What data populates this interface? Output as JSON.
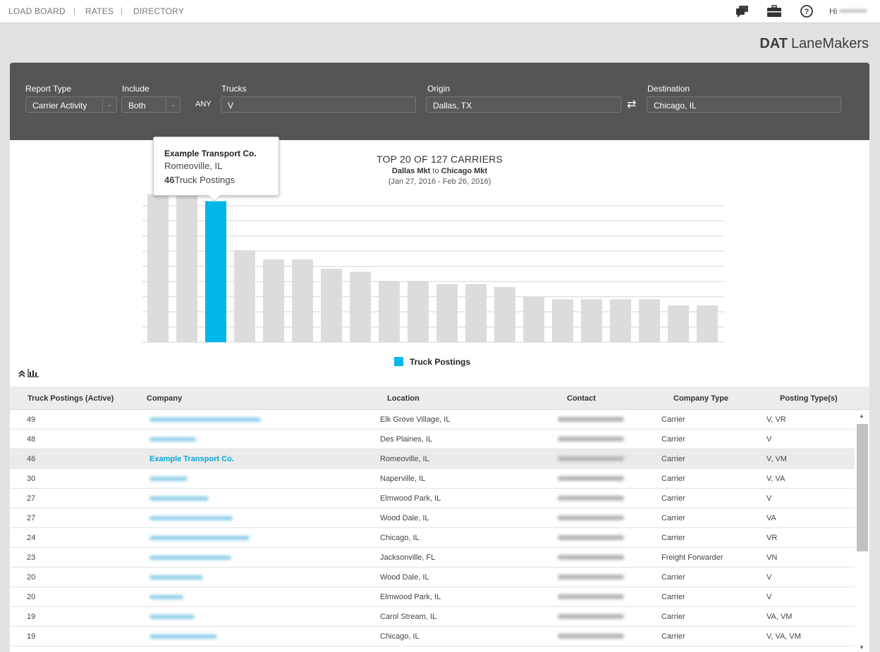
{
  "nav": {
    "links": [
      "LOAD BOARD",
      "RATES",
      "DIRECTORY"
    ],
    "greeting": "Hi"
  },
  "brand": {
    "strong": "DAT",
    "name": "LaneMakers"
  },
  "filters": {
    "report_type_label": "Report Type",
    "report_type_value": "Carrier Activity",
    "include_label": "Include",
    "include_value": "Both",
    "any_label": "ANY",
    "trucks_label": "Trucks",
    "trucks_value": "V",
    "origin_label": "Origin",
    "origin_value": "Dallas, TX",
    "destination_label": "Destination",
    "destination_value": "Chicago, IL"
  },
  "chart_header": {
    "title": "TOP 20 OF 127 CARRIERS",
    "origin_mkt": "Dallas Mkt",
    "to": "to",
    "dest_mkt": "Chicago Mkt",
    "date_range": "(Jan 27, 2016 - Feb 26, 2016)"
  },
  "tooltip": {
    "company": "Example Transport Co.",
    "location": "Romeoville, IL",
    "count": "46",
    "suffix": "Truck Postings"
  },
  "chart_data": {
    "type": "bar",
    "title": "TOP 20 OF 127 CARRIERS",
    "categories": [
      "",
      "",
      "Example Transport Co.",
      "",
      "",
      "",
      "",
      "",
      "",
      "",
      "",
      "",
      "",
      "",
      "",
      "",
      "",
      "",
      "",
      ""
    ],
    "series": [
      {
        "name": "Truck Postings",
        "values": [
          49,
          48,
          46,
          30,
          27,
          27,
          24,
          23,
          20,
          20,
          19,
          19,
          18,
          15,
          14,
          14,
          14,
          14,
          12,
          12
        ]
      }
    ],
    "highlight_index": 2,
    "ylim": [
      0,
      50
    ],
    "grid": true,
    "colors": {
      "bar": "#dcdcdc",
      "highlight": "#00b6ea",
      "grid": "#d4d4d4"
    },
    "legend": "bottom-center"
  },
  "legend_label": "Truck Postings",
  "table": {
    "headers": [
      "Truck Postings (Active)",
      "Company",
      "Location",
      "Contact",
      "Company Type",
      "Posting Type(s)"
    ],
    "rows": [
      {
        "count": "49",
        "company": "",
        "location": "Elk Grove Village, IL",
        "type": "Carrier",
        "posting": "V, VR"
      },
      {
        "count": "48",
        "company": "",
        "location": "Des Plaines, IL",
        "type": "Carrier",
        "posting": "V"
      },
      {
        "count": "46",
        "company": "Example Transport Co.",
        "location": "Romeoville, IL",
        "type": "Carrier",
        "posting": "V, VM"
      },
      {
        "count": "30",
        "company": "",
        "location": "Naperville, IL",
        "type": "Carrier",
        "posting": "V, VA"
      },
      {
        "count": "27",
        "company": "",
        "location": "Elmwood Park, IL",
        "type": "Carrier",
        "posting": "V"
      },
      {
        "count": "27",
        "company": "",
        "location": "Wood Dale, IL",
        "type": "Carrier",
        "posting": "VA"
      },
      {
        "count": "24",
        "company": "",
        "location": "Chicago, IL",
        "type": "Carrier",
        "posting": "VR"
      },
      {
        "count": "23",
        "company": "",
        "location": "Jacksonville, FL",
        "type": "Freight Forwarder",
        "posting": "VN"
      },
      {
        "count": "20",
        "company": "",
        "location": "Wood Dale, IL",
        "type": "Carrier",
        "posting": "V"
      },
      {
        "count": "20",
        "company": "",
        "location": "Elmwood Park, IL",
        "type": "Carrier",
        "posting": "V"
      },
      {
        "count": "19",
        "company": "",
        "location": "Carol Stream, IL",
        "type": "Carrier",
        "posting": "VA, VM"
      },
      {
        "count": "19",
        "company": "",
        "location": "Chicago, IL",
        "type": "Carrier",
        "posting": "V, VA, VM"
      }
    ]
  },
  "icons": [
    "chat-icon",
    "briefcase-icon",
    "help-icon",
    "swap-icon",
    "collapse-icon",
    "bar-chart-icon"
  ]
}
